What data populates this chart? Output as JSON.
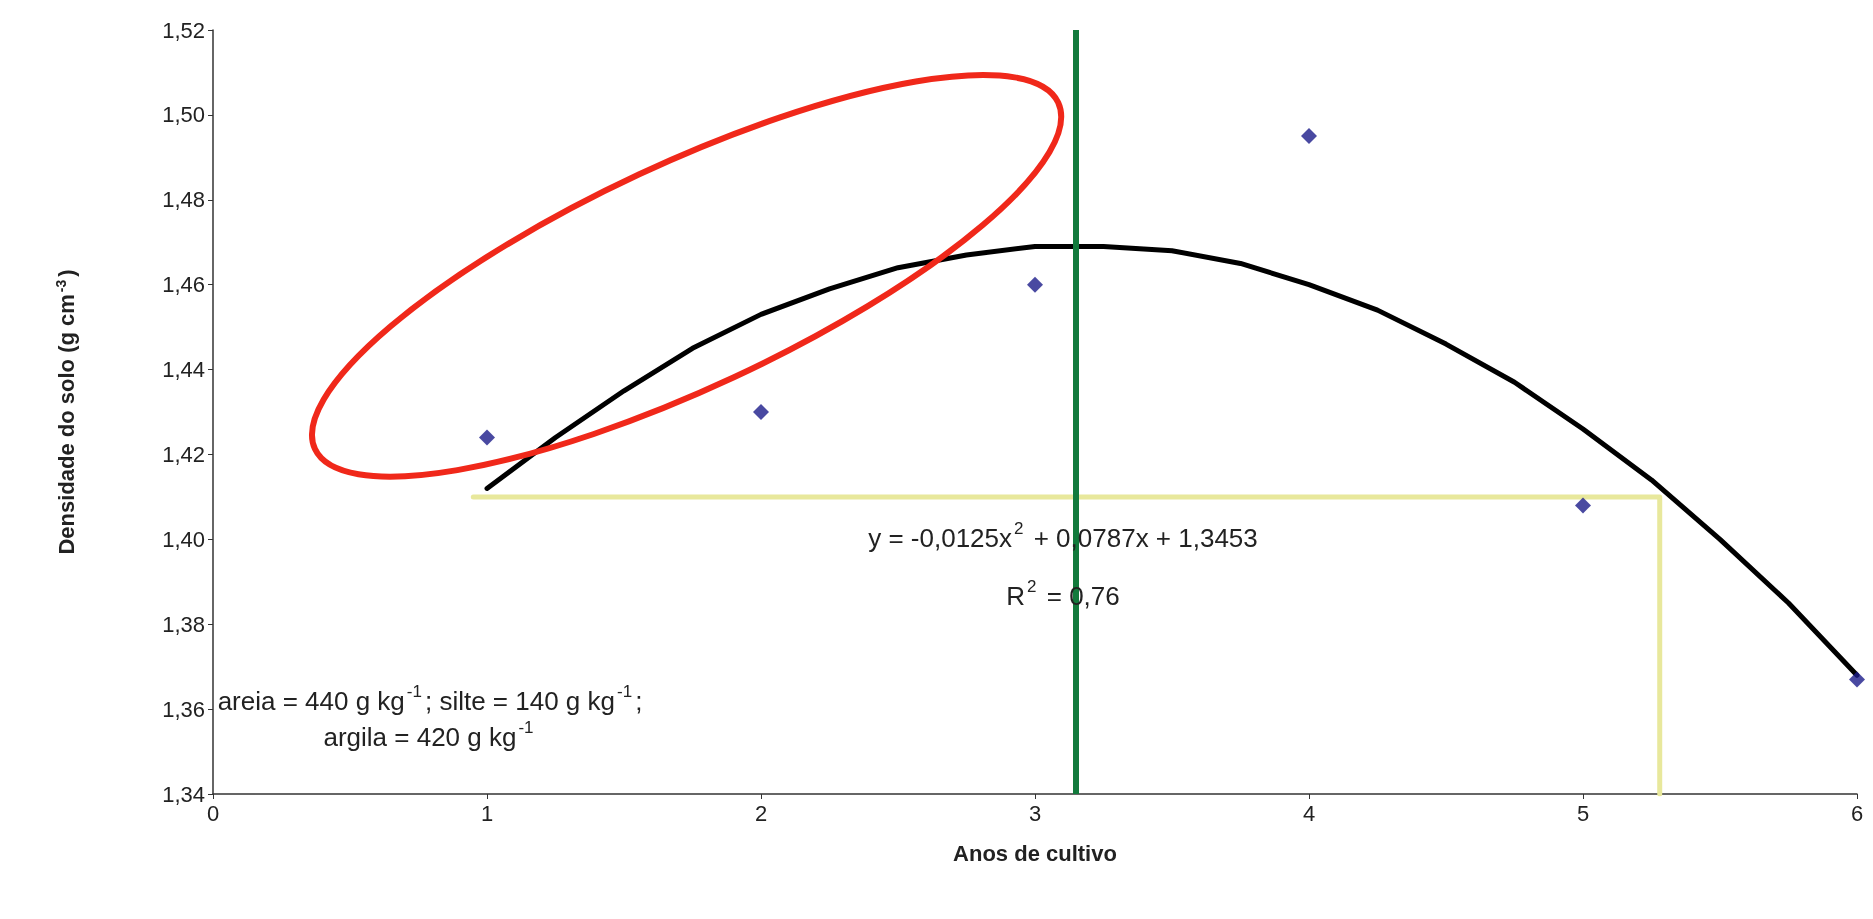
{
  "chart_data": {
    "type": "scatter",
    "xlabel": "Anos de cultivo",
    "ylabel": "Densidade do solo (g cm$^{-3}$)",
    "xlim": [
      0,
      6
    ],
    "xticks": [
      0,
      1,
      2,
      3,
      4,
      5,
      6
    ],
    "ylim": [
      1.34,
      1.52
    ],
    "yticks": [
      {
        "value": 1.34,
        "label": "1,34"
      },
      {
        "value": 1.36,
        "label": "1,36"
      },
      {
        "value": 1.38,
        "label": "1,38"
      },
      {
        "value": 1.4,
        "label": "1,40"
      },
      {
        "value": 1.42,
        "label": "1,42"
      },
      {
        "value": 1.44,
        "label": "1,44"
      },
      {
        "value": 1.46,
        "label": "1,46"
      },
      {
        "value": 1.48,
        "label": "1,48"
      },
      {
        "value": 1.5,
        "label": "1,50"
      },
      {
        "value": 1.52,
        "label": "1,52"
      }
    ],
    "grid": false,
    "series": [
      {
        "color": "#1c1c8a",
        "marker": "diamond",
        "x": [
          1,
          2,
          3,
          4,
          5,
          6
        ],
        "values": [
          1.424,
          1.43,
          1.46,
          1.495,
          1.408,
          1.367
        ]
      },
      {
        "type": "line",
        "color": "#000000",
        "marker": "none",
        "x": [
          1,
          1.25,
          1.5,
          1.75,
          2,
          2.25,
          2.5,
          2.75,
          3,
          3.25,
          3.5,
          3.75,
          4,
          4.25,
          4.5,
          4.75,
          5,
          5.25,
          5.5,
          5.75,
          6
        ],
        "values": [
          1.412,
          1.424,
          1.435,
          1.445,
          1.453,
          1.459,
          1.464,
          1.467,
          1.469,
          1.469,
          1.468,
          1.465,
          1.46,
          1.454,
          1.446,
          1.437,
          1.426,
          1.414,
          1.4,
          1.385,
          1.368
        ]
      },
      {
        "type": "line",
        "color": "#e8e89c",
        "marker": "none",
        "x": [
          0.95,
          5.28,
          5.28
        ],
        "values": [
          1.41,
          1.41,
          1.34
        ]
      }
    ],
    "ref_lines": [
      {
        "axis": "x",
        "value": 3.15,
        "color": "#127a3c"
      }
    ],
    "annotations": [
      "y = -0,0125x$^{2}$ + 0,0787x + 1,3453",
      "R$^{2}$ = 0,76",
      "areia = 440 g kg$^{-1}$; silte = 140 g kg$^{-1}$;\nargila = 420 g kg$^{-1}$"
    ]
  }
}
